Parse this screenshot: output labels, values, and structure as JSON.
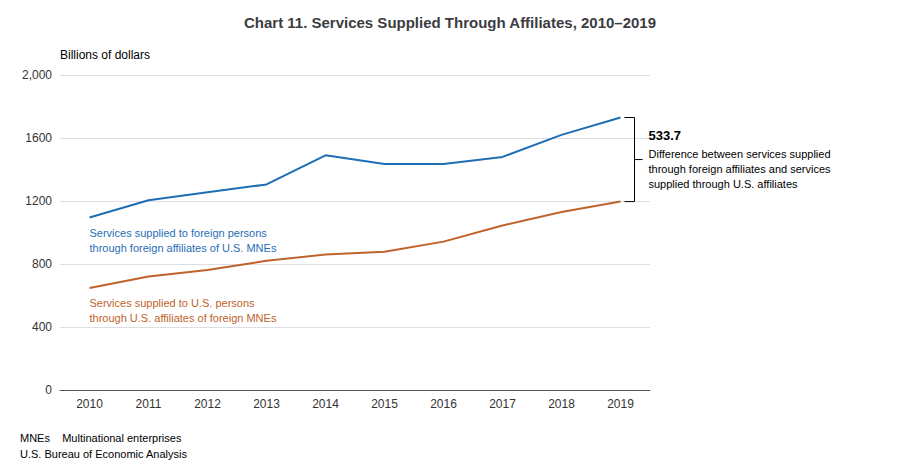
{
  "chart_data": {
    "type": "line",
    "title": "Chart 11. Services Supplied Through Affiliates, 2010–2019",
    "y_label": "Billions of dollars",
    "categories": [
      "2010",
      "2011",
      "2012",
      "2013",
      "2014",
      "2015",
      "2016",
      "2017",
      "2018",
      "2019"
    ],
    "series": [
      {
        "color": "#1f6eb5",
        "values": [
          1095,
          1205,
          1255,
          1305,
          1490,
          1435,
          1435,
          1480,
          1620,
          1730
        ]
      },
      {
        "color": "#c0622b",
        "values": [
          648,
          720,
          762,
          820,
          860,
          878,
          942,
          1045,
          1130,
          1196.3
        ]
      }
    ],
    "ylim": [
      0,
      2000
    ],
    "yticks": [
      0,
      400,
      800,
      1200,
      1600,
      {
        "value": 2000,
        "label": "2,000"
      }
    ],
    "grid": true,
    "annotations": [
      {
        "text": "Services supplied to foreign persons\nthrough foreign affiliates of U.S. MNEs",
        "series": 0
      },
      {
        "text": "Services supplied to U.S. persons\nthrough U.S. affiliates of foreign MNEs",
        "series": 1
      }
    ],
    "difference": {
      "value": 533.7,
      "text": "Difference between services supplied\nthrough foreign affiliates and services\nsupplied through U.S. affiliates"
    },
    "footnotes": [
      "MNEs    Multinational enterprises",
      "U.S. Bureau of Economic Analysis"
    ]
  }
}
